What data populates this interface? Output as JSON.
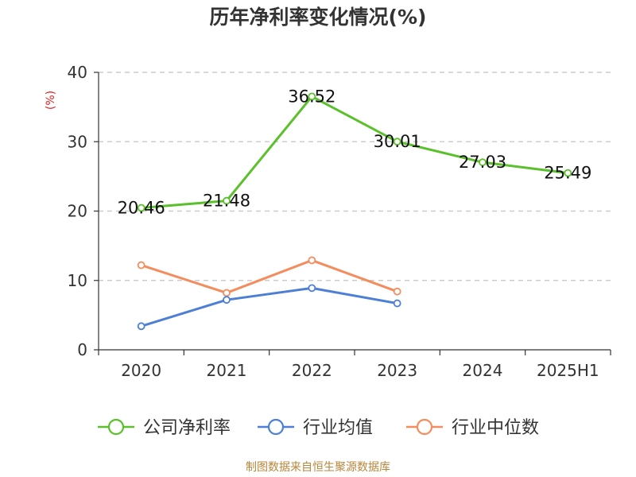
{
  "title": "历年净利率变化情况(%)",
  "source": "制图数据来自恒生聚源数据库",
  "chart_data": {
    "type": "line",
    "title": "历年净利率变化情况(%)",
    "ylabel": "(%)",
    "ylim": [
      0,
      40
    ],
    "yticks": [
      0,
      10,
      20,
      30,
      40
    ],
    "grid": true,
    "legend_position": "bottom",
    "categories": [
      "2020",
      "2021",
      "2022",
      "2023",
      "2024",
      "2025H1"
    ],
    "series": [
      {
        "name": "公司净利率",
        "color": "#5ac02b",
        "values": [
          20.46,
          21.48,
          36.52,
          30.01,
          27.03,
          25.49
        ],
        "labels": [
          "20.46",
          "21.48",
          "36.52",
          "30.01",
          "27.03",
          "25.49"
        ],
        "show_labels": true
      },
      {
        "name": "行业均值",
        "color": "#4d7fd6",
        "values": [
          3.4,
          7.2,
          8.9,
          6.7,
          null,
          null
        ],
        "show_labels": false
      },
      {
        "name": "行业中位数",
        "color": "#f48d5e",
        "values": [
          12.2,
          8.2,
          12.9,
          8.4,
          null,
          null
        ],
        "show_labels": false
      }
    ]
  }
}
